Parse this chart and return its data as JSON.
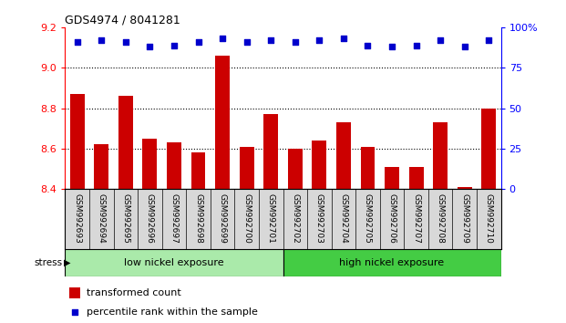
{
  "title": "GDS4974 / 8041281",
  "categories": [
    "GSM992693",
    "GSM992694",
    "GSM992695",
    "GSM992696",
    "GSM992697",
    "GSM992698",
    "GSM992699",
    "GSM992700",
    "GSM992701",
    "GSM992702",
    "GSM992703",
    "GSM992704",
    "GSM992705",
    "GSM992706",
    "GSM992707",
    "GSM992708",
    "GSM992709",
    "GSM992710"
  ],
  "bar_values": [
    8.87,
    8.62,
    8.86,
    8.65,
    8.63,
    8.58,
    9.06,
    8.61,
    8.77,
    8.6,
    8.64,
    8.73,
    8.61,
    8.51,
    8.51,
    8.73,
    8.41,
    8.8
  ],
  "dot_values": [
    91,
    92,
    91,
    88,
    89,
    91,
    93,
    91,
    92,
    91,
    92,
    93,
    89,
    88,
    89,
    92,
    88,
    92
  ],
  "bar_color": "#cc0000",
  "dot_color": "#0000cc",
  "ylim_left": [
    8.4,
    9.2
  ],
  "ylim_right": [
    0,
    100
  ],
  "yticks_left": [
    8.4,
    8.6,
    8.8,
    9.0,
    9.2
  ],
  "yticks_right": [
    0,
    25,
    50,
    75,
    100
  ],
  "ytick_labels_right": [
    "0",
    "25",
    "50",
    "75",
    "100%"
  ],
  "grid_values": [
    8.6,
    8.8,
    9.0
  ],
  "group1_label": "low nickel exposure",
  "group2_label": "high nickel exposure",
  "group1_count": 9,
  "stress_label": "stress",
  "legend_bar": "transformed count",
  "legend_dot": "percentile rank within the sample",
  "xtick_bg_color": "#d8d8d8",
  "group1_color": "#aaeaaa",
  "group2_color": "#44cc44"
}
